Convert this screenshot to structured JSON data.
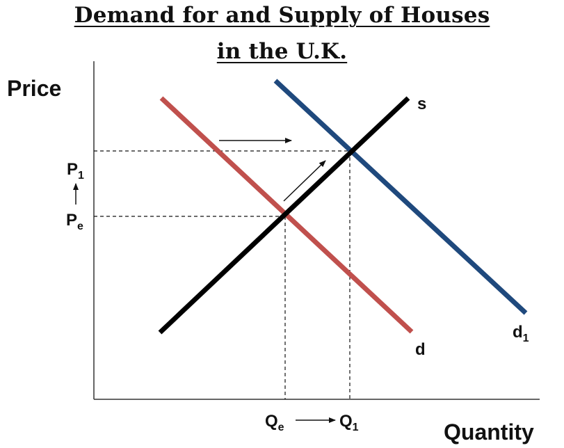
{
  "title_line_1": "Demand for and Supply of Houses",
  "title_line_2": "in the U.K.",
  "axis_y_label": "Price",
  "axis_x_label": "Quantity",
  "curves": {
    "supply": "s",
    "demand": "d",
    "demand_new": "d",
    "demand_new_sub": "1"
  },
  "price_labels": {
    "p1": "P",
    "p1_sub": "1",
    "pe": "P",
    "pe_sub": "e"
  },
  "quantity_labels": {
    "qe": "Q",
    "qe_sub": "e",
    "q1": "Q",
    "q1_sub": "1"
  },
  "colors": {
    "supply": "#000000",
    "demand": "#C0504D",
    "demand_new": "#1F497D",
    "axes": "#333333"
  }
}
